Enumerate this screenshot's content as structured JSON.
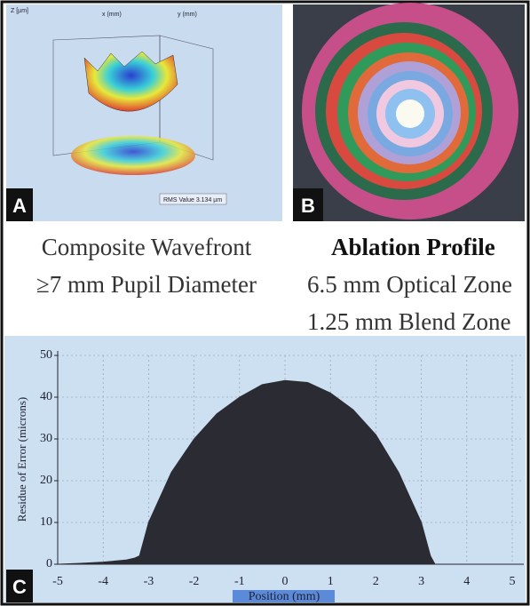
{
  "panels": {
    "A": {
      "label": "A",
      "z_label": "Z [µm]",
      "x_label": "x (mm)",
      "y_label": "y (mm)",
      "rms": "RMS Value 3.134 µm"
    },
    "B": {
      "label": "B"
    },
    "C": {
      "label": "C"
    }
  },
  "captions": {
    "left": [
      "Composite Wavefront",
      "≥7 mm Pupil Diameter"
    ],
    "right_title": "Ablation Profile",
    "right": [
      "6.5 mm Optical Zone",
      "1.25 mm Blend Zone"
    ]
  },
  "chart_data": {
    "type": "area",
    "xlabel": "Position (mm)",
    "ylabel": "Residue of Error (microns)",
    "x": [
      -5,
      -4.5,
      -4,
      -3.5,
      -3.3,
      -3.2,
      -3,
      -2.5,
      -2,
      -1.5,
      -1,
      -0.5,
      0,
      0.5,
      1,
      1.5,
      2,
      2.5,
      3,
      3.2,
      3.3
    ],
    "values": [
      0,
      0.2,
      0.5,
      1,
      1.5,
      2,
      10,
      22,
      30,
      36,
      40,
      43,
      44,
      43.5,
      41,
      37,
      31,
      22,
      10,
      2,
      0
    ],
    "color": "#2b2c33",
    "xlim": [
      -5,
      5
    ],
    "xticks": [
      -5,
      -4,
      -3,
      -2,
      -1,
      0,
      1,
      2,
      3,
      4,
      5
    ],
    "ylim": [
      0,
      50
    ],
    "yticks": [
      0,
      10,
      20,
      30,
      40,
      50
    ],
    "grid": true
  }
}
